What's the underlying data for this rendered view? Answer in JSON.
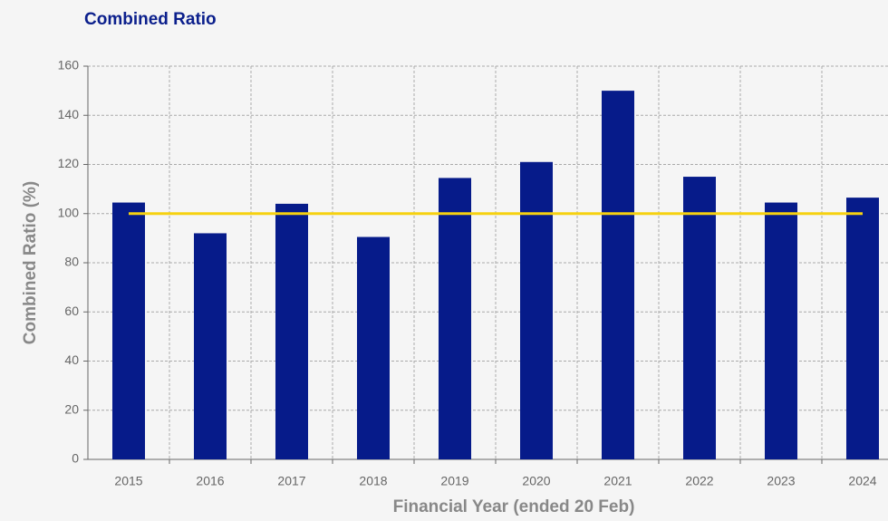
{
  "chart_data": {
    "type": "bar",
    "title": "Combined Ratio",
    "x_label": "Financial Year (ended 20 Feb)",
    "y_label": "Combined Ratio (%)",
    "categories": [
      "2015",
      "2016",
      "2017",
      "2018",
      "2019",
      "2020",
      "2021",
      "2022",
      "2023",
      "2024"
    ],
    "series": [
      {
        "type": "bar",
        "color": "#061b8a",
        "values": [
          104.5,
          92,
          104,
          90.5,
          114.5,
          121,
          150,
          115,
          104.5,
          106.5
        ]
      },
      {
        "type": "line",
        "color": "#f6d110",
        "values": [
          100,
          100,
          100,
          100,
          100,
          100,
          100,
          100,
          100,
          100
        ]
      }
    ],
    "ylim": [
      0,
      160
    ],
    "yticks": [
      0,
      20,
      40,
      60,
      80,
      100,
      120,
      140,
      160
    ],
    "grid": true
  }
}
